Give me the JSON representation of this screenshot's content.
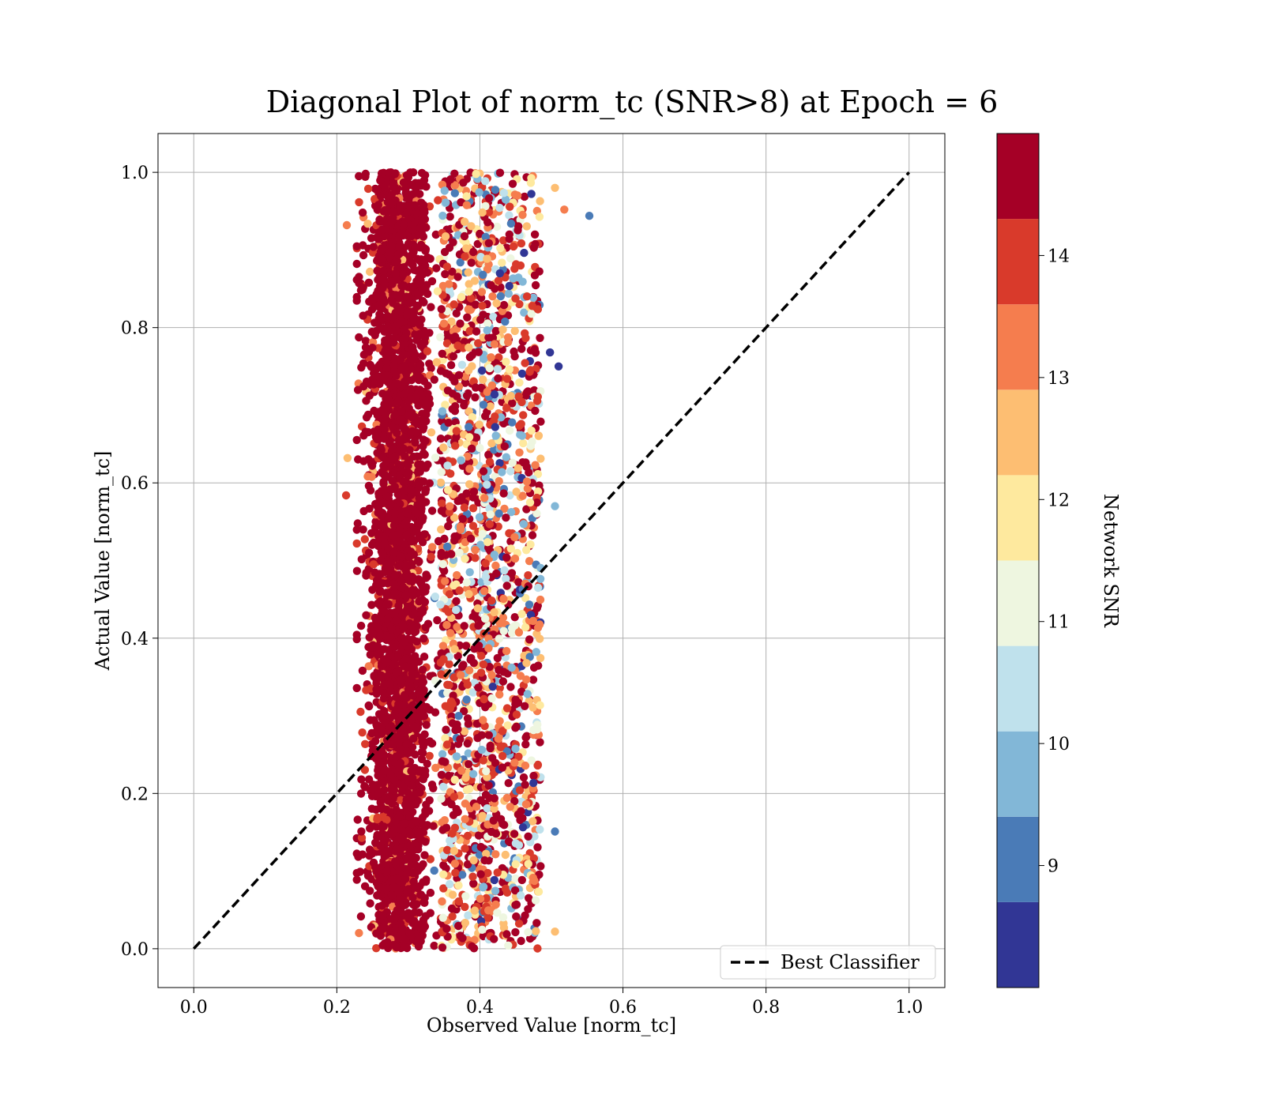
{
  "chart_data": {
    "type": "scatter",
    "title": "Diagonal Plot of norm_tc (SNR>8) at Epoch = 6",
    "xlabel": "Observed Value [norm_tc]",
    "ylabel": "Actual Value [norm_tc]",
    "xlim": [
      -0.05,
      1.05
    ],
    "ylim": [
      -0.05,
      1.05
    ],
    "xticks": [
      "0.0",
      "0.2",
      "0.4",
      "0.6",
      "0.8",
      "1.0"
    ],
    "yticks": [
      "0.0",
      "0.2",
      "0.4",
      "0.6",
      "0.8",
      "1.0"
    ],
    "grid": true,
    "reference_line": {
      "label": "Best Classifier",
      "x": [
        0.0,
        1.0
      ],
      "y": [
        0.0,
        1.0
      ],
      "style": "dashed",
      "color": "#000000"
    },
    "legend": {
      "placement": "lower-right",
      "entries": [
        "Best Classifier"
      ]
    },
    "colorbar": {
      "label": "Network SNR",
      "range": [
        8,
        15
      ],
      "ticks": [
        "9",
        "10",
        "11",
        "12",
        "13",
        "14"
      ],
      "bins": [
        {
          "from": 8.0,
          "to": 8.7,
          "color": "#313695"
        },
        {
          "from": 8.7,
          "to": 9.4,
          "color": "#4a7bb7"
        },
        {
          "from": 9.4,
          "to": 10.1,
          "color": "#82b7d7"
        },
        {
          "from": 10.1,
          "to": 10.8,
          "color": "#bfe1ec"
        },
        {
          "from": 10.8,
          "to": 11.5,
          "color": "#eef6e0"
        },
        {
          "from": 11.5,
          "to": 12.2,
          "color": "#fee99e"
        },
        {
          "from": 12.2,
          "to": 12.9,
          "color": "#fdbe72"
        },
        {
          "from": 12.9,
          "to": 13.6,
          "color": "#f57d4e"
        },
        {
          "from": 13.6,
          "to": 14.3,
          "color": "#d93a2b"
        },
        {
          "from": 14.3,
          "to": 15.0,
          "color": "#a50026"
        }
      ]
    },
    "point_cloud": {
      "description_values": {
        "x_range": [
          0.21,
          0.55
        ],
        "dense_core_x": [
          0.24,
          0.33
        ],
        "y_range": [
          0.0,
          1.0
        ],
        "dominant_snr": 14.5
      },
      "outliers": [
        {
          "x": 0.553,
          "y": 0.944,
          "snr": 9.0
        },
        {
          "x": 0.518,
          "y": 0.952,
          "snr": 13.2
        },
        {
          "x": 0.505,
          "y": 0.98,
          "snr": 12.5
        },
        {
          "x": 0.51,
          "y": 0.75,
          "snr": 8.3
        },
        {
          "x": 0.498,
          "y": 0.768,
          "snr": 8.3
        },
        {
          "x": 0.505,
          "y": 0.57,
          "snr": 9.5
        },
        {
          "x": 0.505,
          "y": 0.151,
          "snr": 9.3
        },
        {
          "x": 0.505,
          "y": 0.022,
          "snr": 12.8
        },
        {
          "x": 0.214,
          "y": 0.932,
          "snr": 13.2
        },
        {
          "x": 0.213,
          "y": 0.584,
          "snr": 13.8
        },
        {
          "x": 0.215,
          "y": 0.632,
          "snr": 12.6
        }
      ]
    }
  }
}
